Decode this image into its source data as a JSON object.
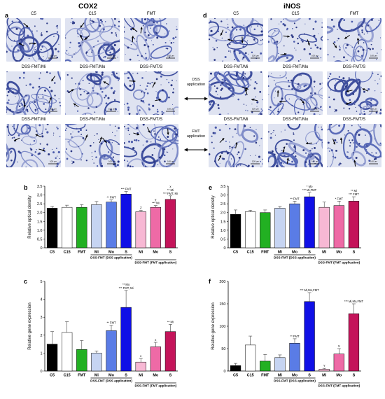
{
  "figure": {
    "left_title": "COX2",
    "right_title": "iNOS",
    "panel_letters": [
      "a",
      "b",
      "c",
      "d",
      "e",
      "f"
    ],
    "image_rows": [
      [
        "C5",
        "C15",
        "FMT"
      ],
      [
        "DSS-FMT/Mi",
        "DSS-FMT/Mo",
        "DSS-FMT/S"
      ],
      [
        "DSS-FMT/Mi",
        "DSS-FMT/Mo",
        "DSS-FMT/S"
      ]
    ],
    "middle_labels": {
      "dss": [
        "DSS",
        "application"
      ],
      "fmt": [
        "FMT",
        "application"
      ]
    },
    "scale_bar": "100 μm"
  },
  "charts_common": {
    "categories": [
      "C5",
      "C15",
      "FMT",
      "Mi",
      "Mo",
      "S",
      "Mi",
      "Mo",
      "S"
    ],
    "group1_label": "DSS-FMT (DSS application)",
    "group2_label": "DSS-FMT (FMT application)",
    "colors": [
      "#000000",
      "#ffffff",
      "#22b022",
      "#c6d4f2",
      "#5a7ce6",
      "#1010e6",
      "#f7b8d4",
      "#ee6aa6",
      "#c4145a"
    ]
  },
  "chart_data": [
    {
      "type": "bar",
      "panel": "b",
      "ylabel": "Relative optical density",
      "ylim": [
        0,
        3.5
      ],
      "yticks": [
        0,
        0.5,
        1,
        1.5,
        2,
        2.5,
        3,
        3.5
      ],
      "tick_labels": [
        "0",
        "0.5",
        "1.0",
        "1.5",
        "2.0",
        "2.5",
        "3.0",
        "3.5"
      ],
      "values": [
        2.25,
        2.3,
        2.3,
        2.45,
        2.6,
        3.05,
        2.05,
        2.3,
        2.75
      ],
      "errors": [
        0.1,
        0.12,
        0.15,
        0.18,
        0.12,
        0.15,
        0.08,
        0.1,
        0.2
      ],
      "annotations": [
        "",
        "",
        "",
        "",
        "** FMT",
        "*** FMT",
        "Z",
        "y\n*** Mi",
        "x\n** Mi\n*** FMT, Mi"
      ]
    },
    {
      "type": "bar",
      "panel": "c",
      "ylabel": "Relative gene expression",
      "ylim": [
        0,
        5
      ],
      "yticks": [
        0,
        1,
        2,
        3,
        4,
        5
      ],
      "tick_labels": [
        "0",
        "1",
        "2",
        "3",
        "4",
        "5"
      ],
      "values": [
        1.5,
        2.15,
        1.2,
        1.0,
        2.25,
        3.55,
        0.5,
        1.35,
        2.2
      ],
      "errors": [
        0.7,
        0.6,
        0.5,
        0.12,
        0.3,
        0.95,
        0.2,
        0.25,
        0.4
      ],
      "annotations": [
        "",
        "",
        "",
        "",
        "** FMT",
        "** Mo\n*** FMT, Mi",
        "x",
        "x",
        "** Mi"
      ]
    },
    {
      "type": "bar",
      "panel": "e",
      "ylabel": "Relative optical density",
      "ylim": [
        0,
        3.5
      ],
      "yticks": [
        0,
        0.5,
        1,
        1.5,
        2,
        2.5,
        3,
        3.5
      ],
      "tick_labels": [
        "0",
        "0.5",
        "1.0",
        "1.5",
        "2.0",
        "2.5",
        "3.0",
        "3.5"
      ],
      "values": [
        1.9,
        2.05,
        2.0,
        2.25,
        2.5,
        2.9,
        2.3,
        2.4,
        2.65
      ],
      "errors": [
        0.25,
        0.08,
        0.15,
        0.1,
        0.15,
        0.25,
        0.3,
        0.25,
        0.25
      ],
      "annotations": [
        "",
        "",
        "",
        "",
        "** FMT",
        "* Mo\n*** Mi,FMT",
        "",
        "* FMT",
        "** Mi\n*** FMT"
      ]
    },
    {
      "type": "bar",
      "panel": "f",
      "ylabel": "Relative gene expression",
      "ylim": [
        0,
        200
      ],
      "yticks": [
        0,
        50,
        100,
        150,
        200
      ],
      "tick_labels": [
        "0",
        "50",
        "100",
        "150",
        "200"
      ],
      "values": [
        12,
        58,
        22,
        30,
        62,
        155,
        4,
        38,
        128
      ],
      "errors": [
        5,
        20,
        15,
        6,
        10,
        20,
        2,
        12,
        22
      ],
      "annotations": [
        "",
        "",
        "",
        "",
        "** FMT",
        "*** Mi,Mo,FMT",
        "Y",
        "X",
        "*** Mi,Mo,FMT"
      ]
    }
  ]
}
